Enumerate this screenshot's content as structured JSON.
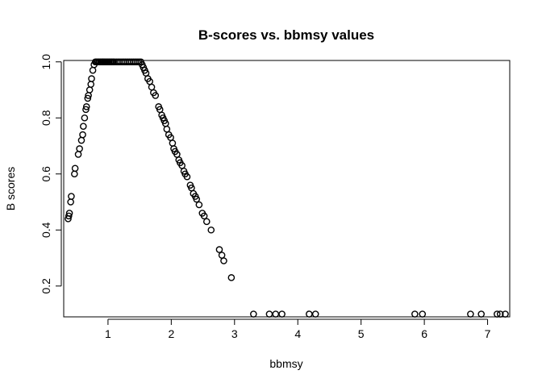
{
  "chart_data": {
    "type": "scatter",
    "title": "B-scores vs. bbmsy values",
    "xlabel": "bbmsy",
    "ylabel": "B scores",
    "xlim": [
      0.3,
      7.35
    ],
    "ylim": [
      0.09,
      1.005
    ],
    "xticks": [
      1,
      2,
      3,
      4,
      5,
      6,
      7
    ],
    "yticks": [
      0.2,
      0.4,
      0.6,
      0.8,
      1.0
    ],
    "xtick_labels": [
      "1",
      "2",
      "3",
      "4",
      "5",
      "6",
      "7"
    ],
    "ytick_labels": [
      "0.2",
      "0.4",
      "0.6",
      "0.8",
      "1.0"
    ],
    "grid": false,
    "legend": "none",
    "marker": "open-circle",
    "points": [
      [
        0.37,
        0.44
      ],
      [
        0.38,
        0.45
      ],
      [
        0.39,
        0.46
      ],
      [
        0.41,
        0.5
      ],
      [
        0.42,
        0.52
      ],
      [
        0.47,
        0.6
      ],
      [
        0.48,
        0.62
      ],
      [
        0.53,
        0.67
      ],
      [
        0.55,
        0.69
      ],
      [
        0.58,
        0.72
      ],
      [
        0.6,
        0.74
      ],
      [
        0.61,
        0.77
      ],
      [
        0.63,
        0.8
      ],
      [
        0.65,
        0.83
      ],
      [
        0.66,
        0.84
      ],
      [
        0.68,
        0.87
      ],
      [
        0.69,
        0.88
      ],
      [
        0.71,
        0.9
      ],
      [
        0.73,
        0.92
      ],
      [
        0.74,
        0.94
      ],
      [
        0.76,
        0.97
      ],
      [
        0.78,
        0.99
      ],
      [
        0.8,
        1.0
      ],
      [
        0.82,
        1.0
      ],
      [
        0.84,
        1.0
      ],
      [
        0.86,
        1.0
      ],
      [
        0.88,
        1.0
      ],
      [
        0.9,
        1.0
      ],
      [
        0.92,
        1.0
      ],
      [
        0.94,
        1.0
      ],
      [
        0.96,
        1.0
      ],
      [
        0.98,
        1.0
      ],
      [
        1.0,
        1.0
      ],
      [
        1.02,
        1.0
      ],
      [
        1.04,
        1.0
      ],
      [
        1.06,
        1.0
      ],
      [
        1.08,
        1.0
      ],
      [
        1.1,
        1.0
      ],
      [
        1.13,
        1.0
      ],
      [
        1.16,
        1.0
      ],
      [
        1.19,
        1.0
      ],
      [
        1.22,
        1.0
      ],
      [
        1.25,
        1.0
      ],
      [
        1.28,
        1.0
      ],
      [
        1.31,
        1.0
      ],
      [
        1.34,
        1.0
      ],
      [
        1.37,
        1.0
      ],
      [
        1.4,
        1.0
      ],
      [
        1.43,
        1.0
      ],
      [
        1.46,
        1.0
      ],
      [
        1.49,
        1.0
      ],
      [
        1.52,
        1.0
      ],
      [
        1.54,
        0.99
      ],
      [
        1.56,
        0.98
      ],
      [
        1.58,
        0.97
      ],
      [
        1.6,
        0.96
      ],
      [
        1.63,
        0.94
      ],
      [
        1.66,
        0.93
      ],
      [
        1.69,
        0.91
      ],
      [
        1.72,
        0.89
      ],
      [
        1.75,
        0.88
      ],
      [
        1.8,
        0.84
      ],
      [
        1.82,
        0.83
      ],
      [
        1.85,
        0.81
      ],
      [
        1.87,
        0.8
      ],
      [
        1.89,
        0.79
      ],
      [
        1.91,
        0.78
      ],
      [
        1.93,
        0.76
      ],
      [
        1.96,
        0.74
      ],
      [
        1.99,
        0.73
      ],
      [
        2.02,
        0.71
      ],
      [
        2.04,
        0.69
      ],
      [
        2.06,
        0.68
      ],
      [
        2.09,
        0.67
      ],
      [
        2.12,
        0.65
      ],
      [
        2.14,
        0.64
      ],
      [
        2.17,
        0.63
      ],
      [
        2.2,
        0.61
      ],
      [
        2.22,
        0.6
      ],
      [
        2.25,
        0.59
      ],
      [
        2.3,
        0.56
      ],
      [
        2.32,
        0.55
      ],
      [
        2.35,
        0.53
      ],
      [
        2.38,
        0.52
      ],
      [
        2.4,
        0.51
      ],
      [
        2.44,
        0.49
      ],
      [
        2.49,
        0.46
      ],
      [
        2.52,
        0.45
      ],
      [
        2.56,
        0.43
      ],
      [
        2.63,
        0.4
      ],
      [
        2.76,
        0.33
      ],
      [
        2.8,
        0.31
      ],
      [
        2.83,
        0.29
      ],
      [
        2.95,
        0.23
      ],
      [
        3.3,
        0.1
      ],
      [
        3.55,
        0.1
      ],
      [
        3.65,
        0.1
      ],
      [
        3.75,
        0.1
      ],
      [
        4.18,
        0.1
      ],
      [
        4.28,
        0.1
      ],
      [
        5.85,
        0.1
      ],
      [
        5.97,
        0.1
      ],
      [
        6.73,
        0.1
      ],
      [
        6.9,
        0.1
      ],
      [
        7.15,
        0.1
      ],
      [
        7.2,
        0.1
      ],
      [
        7.28,
        0.1
      ]
    ]
  }
}
